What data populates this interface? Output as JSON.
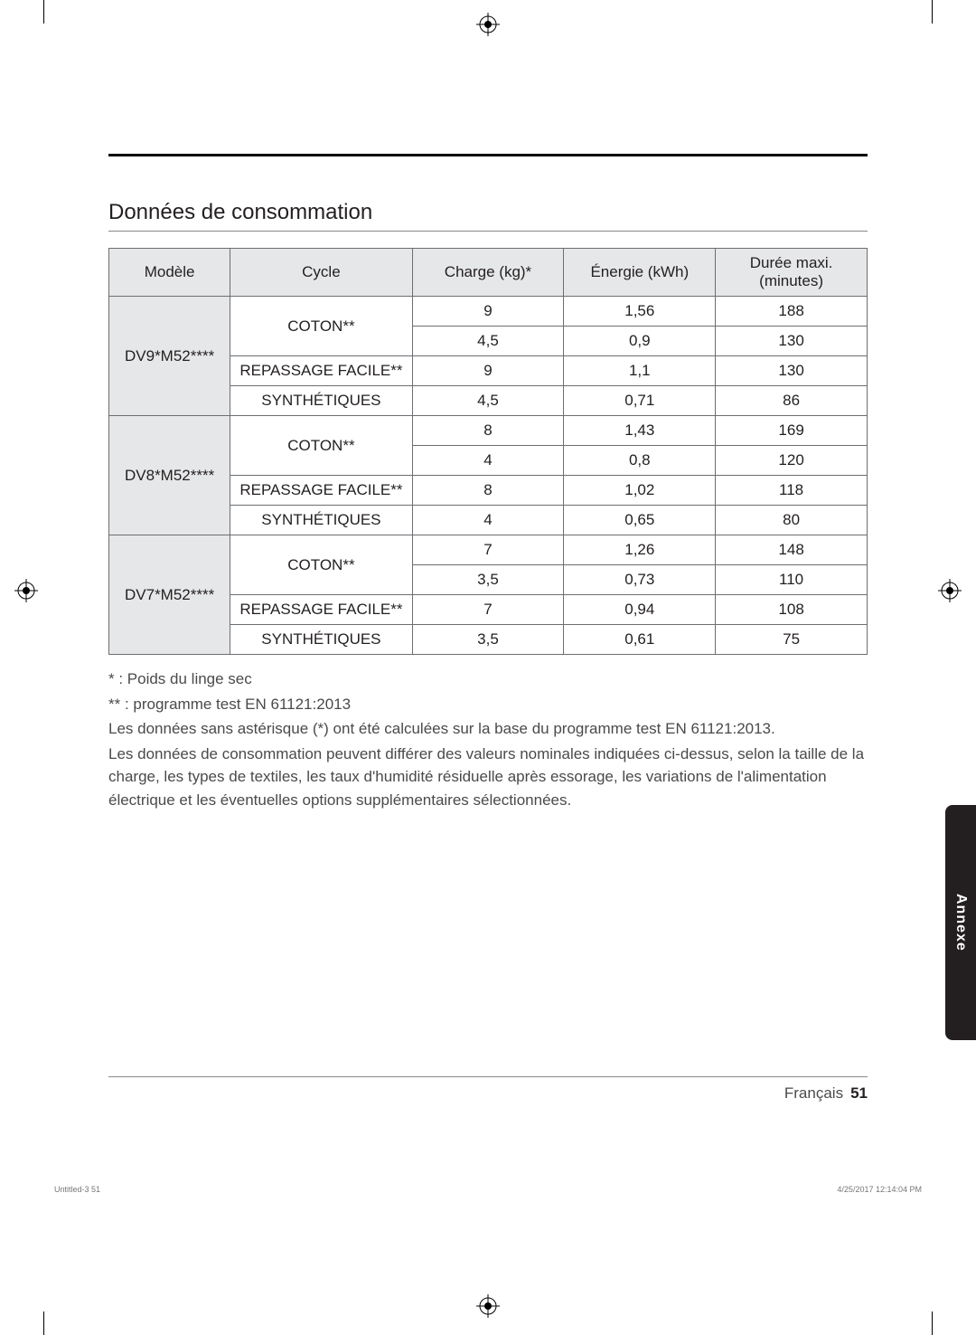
{
  "section_title": "Données de consommation",
  "table": {
    "headers": [
      "Modèle",
      "Cycle",
      "Charge (kg)*",
      "Énergie (kWh)",
      "Durée maxi.\n(minutes)"
    ],
    "groups": [
      {
        "model": "DV9*M52****",
        "rows": [
          {
            "cycle": "COTON**",
            "charge": "9",
            "energy": "1,56",
            "duration": "188"
          },
          {
            "cycle": "",
            "charge": "4,5",
            "energy": "0,9",
            "duration": "130"
          },
          {
            "cycle": "REPASSAGE FACILE**",
            "charge": "9",
            "energy": "1,1",
            "duration": "130"
          },
          {
            "cycle": "SYNTHÉTIQUES",
            "charge": "4,5",
            "energy": "0,71",
            "duration": "86"
          }
        ]
      },
      {
        "model": "DV8*M52****",
        "rows": [
          {
            "cycle": "COTON**",
            "charge": "8",
            "energy": "1,43",
            "duration": "169"
          },
          {
            "cycle": "",
            "charge": "4",
            "energy": "0,8",
            "duration": "120"
          },
          {
            "cycle": "REPASSAGE FACILE**",
            "charge": "8",
            "energy": "1,02",
            "duration": "118"
          },
          {
            "cycle": "SYNTHÉTIQUES",
            "charge": "4",
            "energy": "0,65",
            "duration": "80"
          }
        ]
      },
      {
        "model": "DV7*M52****",
        "rows": [
          {
            "cycle": "COTON**",
            "charge": "7",
            "energy": "1,26",
            "duration": "148"
          },
          {
            "cycle": "",
            "charge": "3,5",
            "energy": "0,73",
            "duration": "110"
          },
          {
            "cycle": "REPASSAGE FACILE**",
            "charge": "7",
            "energy": "0,94",
            "duration": "108"
          },
          {
            "cycle": "SYNTHÉTIQUES",
            "charge": "3,5",
            "energy": "0,61",
            "duration": "75"
          }
        ]
      }
    ]
  },
  "notes": [
    "* : Poids du linge sec",
    "** : programme test EN 61121:2013",
    "Les données sans astérisque (*) ont été calculées sur la base du programme test EN 61121:2013.",
    "Les données de consommation peuvent différer des valeurs nominales indiquées ci-dessus, selon la taille de la charge, les types de textiles, les taux d'humidité résiduelle après essorage, les variations de l'alimentation électrique et les éventuelles options supplémentaires sélectionnées."
  ],
  "side_tab": "Annexe",
  "footer": {
    "language": "Français",
    "page": "51"
  },
  "fine_print": {
    "left": "Untitled-3   51",
    "right": "4/25/2017   12:14:04 PM"
  },
  "colors": {
    "header_bg": "#e6e7e8",
    "border": "#6d6e71",
    "text": "#231f20",
    "note_text": "#4a4a4a",
    "tab_bg": "#231f20"
  }
}
